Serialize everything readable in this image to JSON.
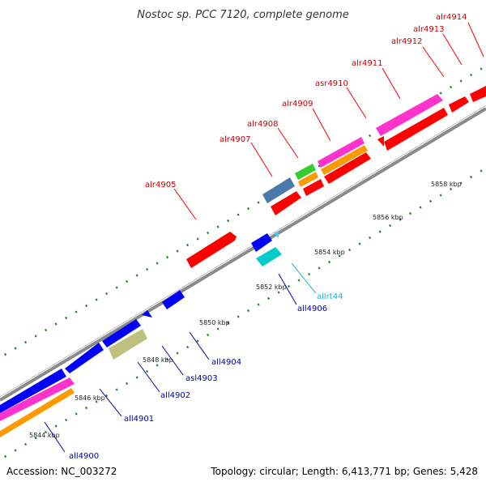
{
  "title": "Nostoc sp. PCC 7120, complete genome",
  "footer": {
    "accession": "Accession: NC_003272",
    "summary": "Topology: circular; Length: 6,413,771 bp; Genes: 5,428"
  },
  "colors": {
    "backbone": "#808080",
    "tick": "#1f7a1f",
    "forward_label": "#cc0000",
    "reverse_label": "#0000aa",
    "rna_label": "#19b4d0"
  },
  "ticks": [
    {
      "kbp": 5844,
      "label": "5844 kbp"
    },
    {
      "kbp": 5846,
      "label": "5846 kbp"
    },
    {
      "kbp": 5848,
      "label": "5848 kbp"
    },
    {
      "kbp": 5850,
      "label": "5850 kbp"
    },
    {
      "kbp": 5852,
      "label": "5852 kbp"
    },
    {
      "kbp": 5854,
      "label": "5854 kbp"
    },
    {
      "kbp": 5856,
      "label": "5856 kbp"
    },
    {
      "kbp": 5858,
      "label": "5858 kbp"
    }
  ],
  "forward_labels": [
    "alr4905",
    "alr4907",
    "alr4908",
    "alr4909",
    "asr4910",
    "alr4911",
    "alr4912",
    "alr4913",
    "alr4914"
  ],
  "reverse_labels": [
    "all4900",
    "all4901",
    "all4902",
    "asl4903",
    "all4904",
    "all4906",
    "allrt44"
  ]
}
